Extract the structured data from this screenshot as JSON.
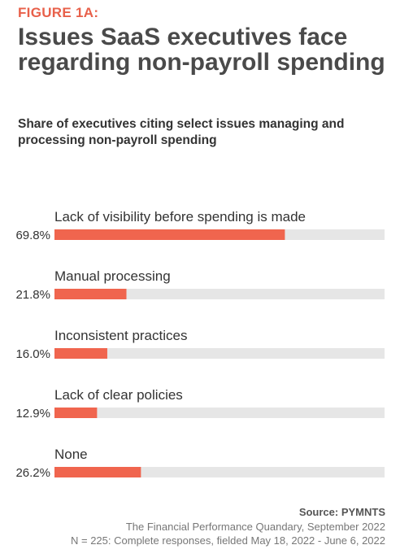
{
  "figure_label": "FIGURE 1A:",
  "title": "Issues SaaS executives face regarding non-payroll spending",
  "subtitle": "Share of executives citing select issues managing and processing non-payroll spending",
  "source": "Source: PYMNTS",
  "note_line1": "The Financial Performance Quandary, September 2022",
  "note_line2": "N = 225: Complete responses, fielded May 18, 2022 - June 6, 2022",
  "colors": {
    "bar": "#f0654e",
    "track": "#e6e6e6",
    "accent": "#e8604a"
  },
  "chart_data": {
    "type": "bar",
    "orientation": "horizontal",
    "categories": [
      "Lack of visibility before spending is made",
      "Manual processing",
      "Inconsistent practices",
      "Lack of clear policies",
      "None"
    ],
    "values": [
      69.8,
      21.8,
      16.0,
      12.9,
      26.2
    ],
    "value_labels": [
      "69.8%",
      "21.8%",
      "16.0%",
      "12.9%",
      "26.2%"
    ],
    "xlim": [
      0,
      100
    ],
    "grid": false
  }
}
